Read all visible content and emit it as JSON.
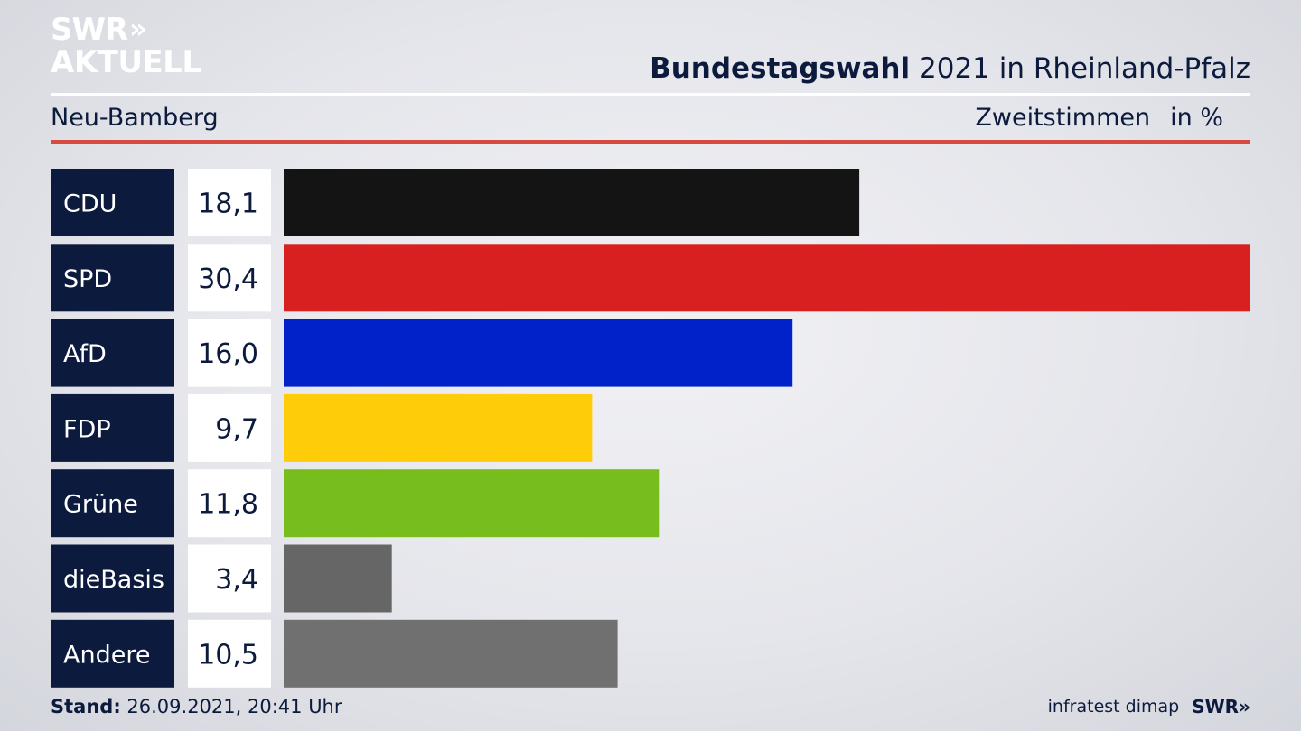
{
  "header": {
    "logo_top": "SWR",
    "logo_arrows": "»",
    "logo_bottom": "AKTUELL",
    "title_bold": "Bundestagswahl",
    "title_rest": "2021 in Rheinland-Pfalz",
    "region": "Neu-Bamberg",
    "measure": "Zweitstimmen",
    "unit": "in %"
  },
  "footer": {
    "stand_label": "Stand:",
    "stand_value": "26.09.2021, 20:41 Uhr",
    "source": "infratest dimap",
    "brand": "SWR",
    "brand_arrows": "»"
  },
  "colors": {
    "label_bg": "#0c1b3d",
    "value_bg": "#ffffff",
    "title": "#0c1b3d",
    "rule_red": "#d64a41"
  },
  "chart_data": {
    "type": "bar",
    "orientation": "horizontal",
    "categories": [
      "CDU",
      "SPD",
      "AfD",
      "FDP",
      "Grüne",
      "dieBasis",
      "Andere"
    ],
    "values": [
      18.1,
      30.4,
      16.0,
      9.7,
      11.8,
      3.4,
      10.5
    ],
    "value_labels": [
      "18,1",
      "30,4",
      "16,0",
      "9,7",
      "11,8",
      "3,4",
      "10,5"
    ],
    "colors": [
      "#141414",
      "#d92020",
      "#0022c8",
      "#ffcc0a",
      "#78bd1e",
      "#666666",
      "#707070"
    ],
    "xlim": [
      0,
      30.4
    ],
    "grid": false,
    "legend": "none"
  }
}
